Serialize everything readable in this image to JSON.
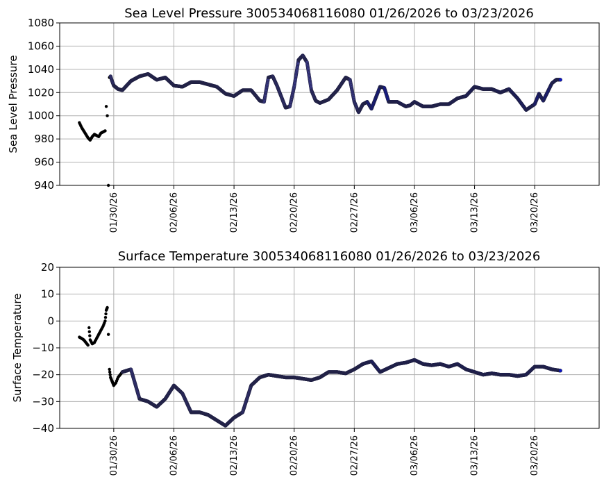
{
  "chart_data": [
    {
      "type": "scatter",
      "title": "Sea Level Pressure 300534068116080  01/26/2026 to 03/23/2026",
      "ylabel": "Sea Level Pressure",
      "xlabel": "",
      "ylim": [
        940,
        1080
      ],
      "yticks": [
        "940",
        "960",
        "980",
        "1000",
        "1020",
        "1040",
        "1060",
        "1080"
      ],
      "xticks": [
        "01/30/26",
        "02/06/26",
        "02/13/26",
        "02/20/26",
        "02/27/26",
        "03/06/26",
        "03/13/26",
        "03/20/26"
      ],
      "grid": true,
      "colors": {
        "early": "#000000",
        "middle": "#3b3a8a",
        "late": "#0a14c8"
      },
      "series": [
        {
          "x": [
            "2026-01-26",
            "2026-01-26T06",
            "2026-01-26T12",
            "2026-01-26T18",
            "2026-01-27",
            "2026-01-27T06",
            "2026-01-27T12",
            "2026-01-27T18",
            "2026-01-28",
            "2026-01-28T06",
            "2026-01-28T12",
            "2026-01-28T18",
            "2026-01-29",
            "2026-01-29T03",
            "2026-01-29T06",
            "2026-01-29T09",
            "2026-01-29T12",
            "2026-01-29T15"
          ],
          "y": [
            994,
            990,
            987,
            984,
            981,
            979,
            982,
            984,
            983,
            982,
            985,
            986,
            987,
            1008,
            1000,
            940,
            1033,
            1034
          ]
        },
        {
          "x": [
            "2026-01-29T18",
            "2026-01-30",
            "2026-01-30T12",
            "2026-01-31",
            "2026-02-01",
            "2026-02-02",
            "2026-02-03",
            "2026-02-04",
            "2026-02-05",
            "2026-02-06",
            "2026-02-07",
            "2026-02-08",
            "2026-02-09",
            "2026-02-10",
            "2026-02-11",
            "2026-02-12",
            "2026-02-13",
            "2026-02-14",
            "2026-02-15",
            "2026-02-16",
            "2026-02-16T12",
            "2026-02-17",
            "2026-02-17T12",
            "2026-02-18",
            "2026-02-19",
            "2026-02-19T12",
            "2026-02-20",
            "2026-02-20T12",
            "2026-02-21",
            "2026-02-21T12",
            "2026-02-22",
            "2026-02-22T12",
            "2026-02-23",
            "2026-02-24",
            "2026-02-25",
            "2026-02-26",
            "2026-02-26T12",
            "2026-02-27",
            "2026-02-27T12",
            "2026-02-28",
            "2026-02-28T12"
          ],
          "y": [
            1031,
            1026,
            1023,
            1022,
            1030,
            1034,
            1036,
            1031,
            1033,
            1026,
            1025,
            1029,
            1029,
            1027,
            1025,
            1019,
            1017,
            1022,
            1022,
            1013,
            1012,
            1033,
            1034,
            1026,
            1007,
            1008,
            1025,
            1048,
            1052,
            1046,
            1022,
            1013,
            1011,
            1014,
            1022,
            1033,
            1031,
            1012,
            1003,
            1010,
            1012
          ]
        },
        {
          "x": [
            "2026-03-01",
            "2026-03-02",
            "2026-03-02T12",
            "2026-03-03",
            "2026-03-04",
            "2026-03-05",
            "2026-03-05T12",
            "2026-03-06",
            "2026-03-07",
            "2026-03-08",
            "2026-03-09",
            "2026-03-10",
            "2026-03-11",
            "2026-03-12",
            "2026-03-13",
            "2026-03-14",
            "2026-03-15",
            "2026-03-16",
            "2026-03-17",
            "2026-03-18",
            "2026-03-19",
            "2026-03-20",
            "2026-03-20T12",
            "2026-03-21",
            "2026-03-22",
            "2026-03-22T12",
            "2026-03-23"
          ],
          "y": [
            1006,
            1025,
            1024,
            1012,
            1012,
            1008,
            1009,
            1012,
            1008,
            1008,
            1010,
            1010,
            1015,
            1017,
            1025,
            1023,
            1023,
            1020,
            1023,
            1015,
            1005,
            1010,
            1019,
            1013,
            1028,
            1031,
            1031
          ]
        }
      ]
    },
    {
      "type": "scatter",
      "title": "Surface Temperature 300534068116080  01/26/2026 to 03/23/2026",
      "ylabel": "Surface Temperature",
      "xlabel": "",
      "ylim": [
        -40,
        20
      ],
      "yticks": [
        "−40",
        "−30",
        "−20",
        "−10",
        "0",
        "10",
        "20"
      ],
      "xticks": [
        "01/30/26",
        "02/06/26",
        "02/13/26",
        "02/20/26",
        "02/27/26",
        "03/06/26",
        "03/13/26",
        "03/20/26"
      ],
      "grid": true,
      "colors": {
        "early": "#000000",
        "middle": "#3b3a8a",
        "late": "#0a14c8"
      },
      "series": [
        {
          "x": [
            "2026-01-26",
            "2026-01-26T06",
            "2026-01-26T12",
            "2026-01-26T18",
            "2026-01-27",
            "2026-01-27T03",
            "2026-01-27T06",
            "2026-01-27T12",
            "2026-01-27T18",
            "2026-01-28",
            "2026-01-28T06",
            "2026-01-28T12",
            "2026-01-28T18",
            "2026-01-29",
            "2026-01-29T03",
            "2026-01-29T06",
            "2026-01-29T09",
            "2026-01-29T12",
            "2026-01-29T15",
            "2026-01-29T18",
            "2026-01-29T21",
            "2026-01-30",
            "2026-01-30T06",
            "2026-01-30T12",
            "2026-01-30T18",
            "2026-01-31"
          ],
          "y": [
            -6,
            -6.5,
            -7,
            -8,
            -9,
            -2.5,
            -7,
            -8.5,
            -8,
            -6.5,
            -5,
            -3.5,
            -2,
            0,
            4,
            5,
            -5,
            -18,
            -21,
            -22,
            -23,
            -24,
            -23,
            -21,
            -20,
            -19
          ]
        },
        {
          "x": [
            "2026-02-01",
            "2026-02-02",
            "2026-02-03",
            "2026-02-04",
            "2026-02-05",
            "2026-02-06",
            "2026-02-07",
            "2026-02-08",
            "2026-02-09",
            "2026-02-10",
            "2026-02-11",
            "2026-02-12",
            "2026-02-13",
            "2026-02-14",
            "2026-02-15",
            "2026-02-16",
            "2026-02-17",
            "2026-02-18",
            "2026-02-19",
            "2026-02-20",
            "2026-02-21",
            "2026-02-22",
            "2026-02-23",
            "2026-02-24",
            "2026-02-25",
            "2026-02-26",
            "2026-02-27",
            "2026-02-28"
          ],
          "y": [
            -18,
            -29,
            -30,
            -32,
            -29,
            -24,
            -27,
            -34,
            -34,
            -35,
            -37,
            -39,
            -36,
            -34,
            -24,
            -21,
            -20,
            -20.5,
            -21,
            -21,
            -21.5,
            -22,
            -21,
            -19,
            -19,
            -19.5,
            -18,
            -16
          ]
        },
        {
          "x": [
            "2026-03-01",
            "2026-03-02",
            "2026-03-03",
            "2026-03-04",
            "2026-03-05",
            "2026-03-06",
            "2026-03-07",
            "2026-03-08",
            "2026-03-09",
            "2026-03-10",
            "2026-03-11",
            "2026-03-12",
            "2026-03-13",
            "2026-03-14",
            "2026-03-15",
            "2026-03-16",
            "2026-03-17",
            "2026-03-18",
            "2026-03-19",
            "2026-03-20",
            "2026-03-21",
            "2026-03-22",
            "2026-03-23"
          ],
          "y": [
            -15,
            -19,
            -17.5,
            -16,
            -15.5,
            -14.5,
            -16,
            -16.5,
            -16,
            -17,
            -16,
            -18,
            -19,
            -20,
            -19.5,
            -20,
            -20,
            -20.5,
            -20,
            -17,
            -17,
            -18,
            -18.5
          ]
        }
      ]
    }
  ]
}
